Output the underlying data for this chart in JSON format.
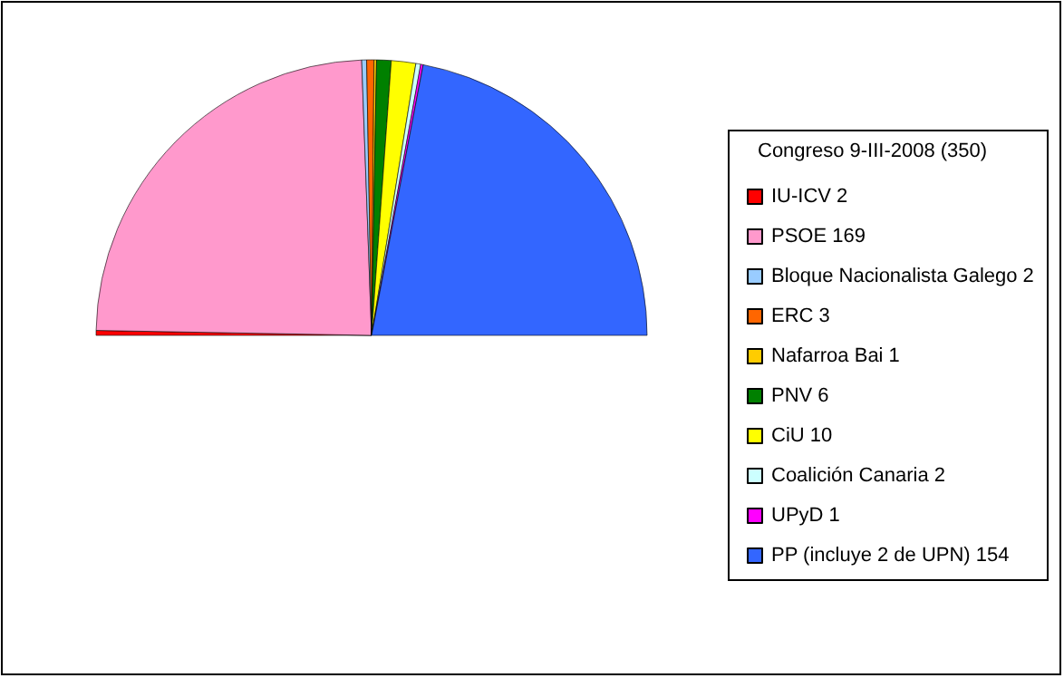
{
  "chart_data": {
    "type": "pie",
    "legend_title": "Congreso 9-III-2008 (350)",
    "legend": "right",
    "categories": [
      "IU-ICV 2",
      "PSOE 169",
      "Bloque Nacionalista Galego 2",
      "ERC 3",
      "Nafarroa Bai 1",
      "PNV 6",
      "CiU 10",
      "Coalición Canaria 2",
      "UPyD 1",
      "PP (incluye 2 de UPN) 154"
    ],
    "values": [
      2,
      169,
      2,
      3,
      1,
      6,
      10,
      2,
      1,
      154
    ],
    "colors": [
      "#ff0000",
      "#ff99cc",
      "#99ccff",
      "#ff6600",
      "#ffcc00",
      "#008000",
      "#ffff00",
      "#ccffff",
      "#ff00ff",
      "#3366ff"
    ]
  }
}
